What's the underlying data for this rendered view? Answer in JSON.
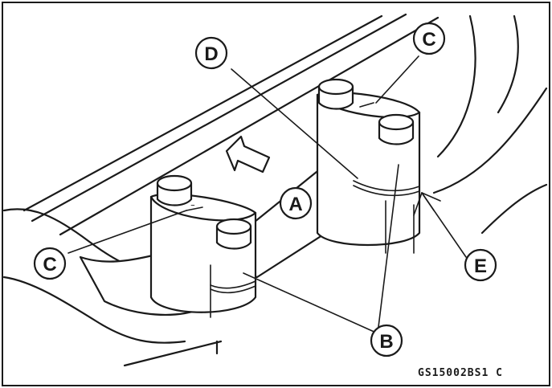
{
  "labels": {
    "a": "A",
    "b": "B",
    "c": "C",
    "d": "D",
    "e": "E"
  },
  "figure_code": "GS15002BS1  C"
}
